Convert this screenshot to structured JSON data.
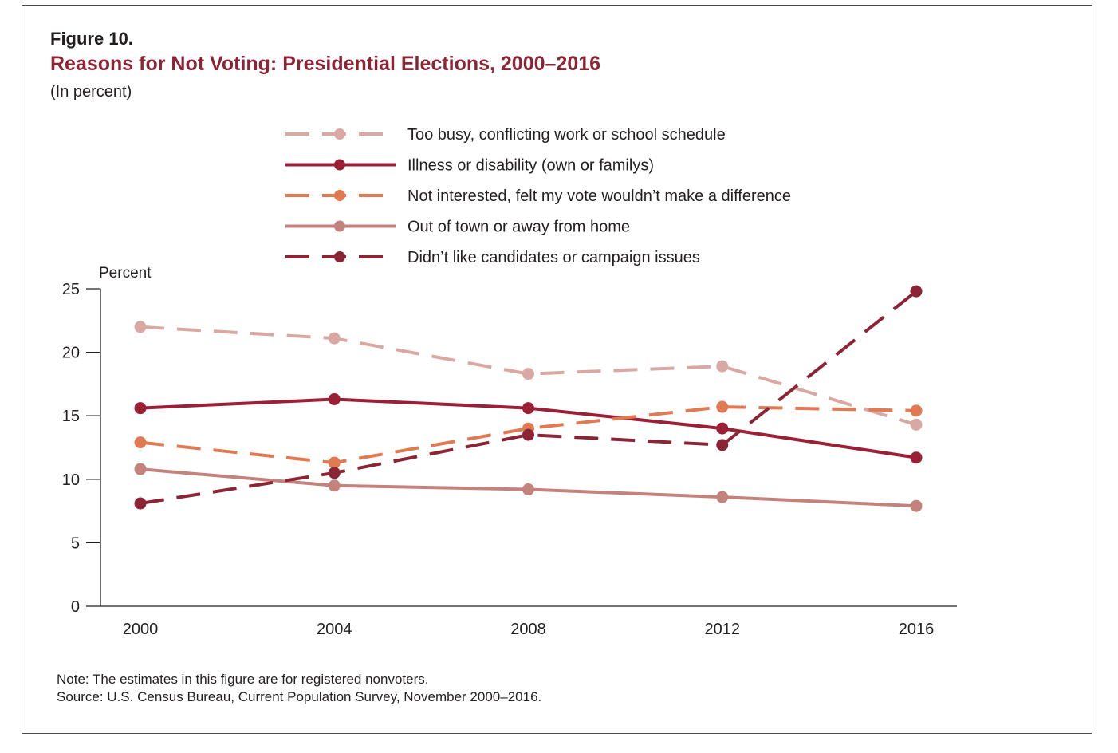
{
  "figure": {
    "label": "Figure 10.",
    "title": "Reasons for Not Voting: Presidential Elections, 2000–2016",
    "subtitle": "(In percent)",
    "note": "Note: The estimates in this figure are for registered nonvoters.",
    "source": "Source: U.S. Census Bureau, Current Population Survey, November 2000–2016."
  },
  "chart_data": {
    "type": "line",
    "ylabel": "Percent",
    "xlabel": "",
    "x": [
      "2000",
      "2004",
      "2008",
      "2012",
      "2016"
    ],
    "ylim": [
      0,
      25
    ],
    "yticks": [
      "0",
      "5",
      "10",
      "15",
      "20",
      "25"
    ],
    "grid": false,
    "legend_position": "top",
    "series": [
      {
        "name": "Too busy, conflicting work or school schedule",
        "values": [
          22.0,
          21.1,
          18.3,
          18.9,
          14.3
        ],
        "color": "#d9a8a2",
        "dashed": true
      },
      {
        "name": "Illness or disability (own or familys)",
        "values": [
          15.6,
          16.3,
          15.6,
          14.0,
          11.7
        ],
        "color": "#9b1f35",
        "dashed": false
      },
      {
        "name": "Not interested, felt my vote wouldn’t make a difference",
        "values": [
          12.9,
          11.3,
          14.0,
          15.7,
          15.4
        ],
        "color": "#e07a52",
        "dashed": true
      },
      {
        "name": "Out of town or away from home",
        "values": [
          10.8,
          9.5,
          9.2,
          8.6,
          7.9
        ],
        "color": "#c4827c",
        "dashed": false
      },
      {
        "name": "Didn’t like candidates or campaign issues",
        "values": [
          8.1,
          10.5,
          13.5,
          12.7,
          24.8
        ],
        "color": "#8b2535",
        "dashed": true
      }
    ]
  }
}
